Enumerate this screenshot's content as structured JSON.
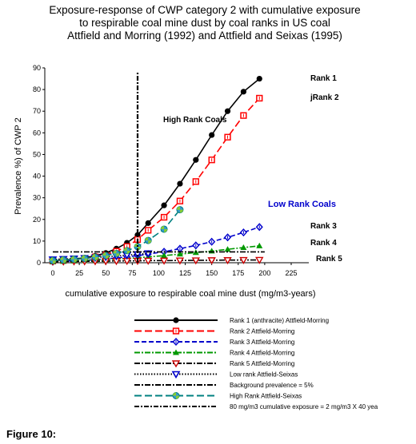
{
  "figure_caption": "Figure 10:",
  "chart_data": {
    "type": "line",
    "title_lines": [
      "Exposure-response of CWP category 2 with cumulative exposure",
      "to respirable coal mine dust by coal ranks in US coal",
      "Attfield and Morring (1992) and Attfield and Seixas (1995)"
    ],
    "xlabel": "cumulative exposure to respirable coal mine dust (mg/m3-years)",
    "ylabel": "Prevalence %) of CWP 2",
    "xlim": [
      0,
      225
    ],
    "ylim": [
      0,
      90
    ],
    "xticks": [
      "0",
      "25",
      "50",
      "75",
      "100",
      "125",
      "150",
      "175",
      "200",
      "225"
    ],
    "yticks": [
      "0",
      "10",
      "20",
      "30",
      "40",
      "50",
      "60",
      "70",
      "80",
      "90"
    ],
    "annotations": {
      "high_rank": "High Rank Coals",
      "low_rank": "Low Rank Coals",
      "rank1": "Rank 1",
      "rank2": "jRank 2",
      "rank3": "Rank 3",
      "rank4": "Rank 4",
      "rank5": "Rank 5"
    },
    "series": [
      {
        "name": "Rank 1 (anthracite) Attfield-Morring",
        "color": "#000000",
        "dash": "solid",
        "marker": "circle",
        "x": [
          0,
          10,
          20,
          30,
          40,
          50,
          60,
          70,
          80,
          90,
          105,
          120,
          135,
          150,
          165,
          180,
          195
        ],
        "y": [
          1,
          1.3,
          1.7,
          2.3,
          3.2,
          4.5,
          6.5,
          9.2,
          12.8,
          18.3,
          26.5,
          36.5,
          47.5,
          59,
          70,
          79,
          85
        ]
      },
      {
        "name": "Rank 2 Attfield-Morring",
        "color": "#ff0000",
        "dash": "long",
        "marker": "square",
        "x": [
          0,
          10,
          20,
          30,
          40,
          50,
          60,
          70,
          80,
          90,
          105,
          120,
          135,
          150,
          165,
          180,
          195
        ],
        "y": [
          0.8,
          1.1,
          1.5,
          2,
          2.7,
          3.7,
          5.3,
          7.5,
          10.7,
          15,
          21,
          28.5,
          37.5,
          47.5,
          58,
          68,
          76
        ]
      },
      {
        "name": "Rank 3 Attfield-Morring",
        "color": "#0000cc",
        "dash": "dash",
        "marker": "diamond",
        "x": [
          0,
          10,
          20,
          30,
          40,
          50,
          60,
          70,
          80,
          90,
          105,
          120,
          135,
          150,
          165,
          180,
          195
        ],
        "y": [
          0.5,
          0.7,
          0.9,
          1.1,
          1.4,
          1.8,
          2.2,
          2.7,
          3.3,
          4,
          5.1,
          6.5,
          8,
          9.7,
          11.7,
          14,
          16.5
        ]
      },
      {
        "name": "Rank 4 Attfield-Morring",
        "color": "#009900",
        "dash": "dashdot",
        "marker": "triangle",
        "x": [
          0,
          10,
          20,
          30,
          40,
          50,
          60,
          70,
          80,
          90,
          105,
          120,
          135,
          150,
          165,
          180,
          195
        ],
        "y": [
          0.5,
          0.6,
          0.8,
          1,
          1.2,
          1.4,
          1.7,
          2,
          2.3,
          2.7,
          3.3,
          4,
          4.7,
          5.4,
          6.2,
          7,
          7.8
        ]
      },
      {
        "name": "Rank 5 Attfield-Morring",
        "color": "#000000",
        "dash": "dashdot",
        "marker": "invtri-red",
        "x": [
          0,
          10,
          20,
          30,
          40,
          50,
          60,
          70,
          80,
          90,
          105,
          120,
          135,
          150,
          165,
          180,
          195
        ],
        "y": [
          0.5,
          0.55,
          0.6,
          0.65,
          0.7,
          0.75,
          0.8,
          0.85,
          0.9,
          0.95,
          1,
          1.05,
          1.1,
          1.15,
          1.2,
          1.25,
          1.3
        ]
      },
      {
        "name": "Low rank  Attfield-Seixas",
        "color": "#000000",
        "dash": "dotted",
        "marker": "invtri-blue",
        "x": [
          0,
          10,
          20,
          30,
          40,
          50,
          60,
          70,
          80,
          90
        ],
        "y": [
          1.5,
          1.7,
          1.9,
          2.1,
          2.4,
          2.7,
          3.1,
          3.5,
          3.9,
          4.3
        ]
      },
      {
        "name": "Background prevalence = 5%",
        "color": "#000000",
        "dash": "dashdot",
        "marker": "none",
        "x": [
          0,
          200
        ],
        "y": [
          5,
          5
        ]
      },
      {
        "name": "High Rank  Attfield-Seixas",
        "color": "#008080",
        "dash": "long",
        "marker": "tealcircle",
        "x": [
          0,
          10,
          20,
          30,
          40,
          50,
          60,
          70,
          80,
          90,
          105,
          120
        ],
        "y": [
          1,
          1.3,
          1.6,
          2,
          2.6,
          3.3,
          4.3,
          5.6,
          7.4,
          10.3,
          15.5,
          24.5
        ]
      },
      {
        "name": "80 mg/m3 cumulative exposure = 2 mg/m3 X 40 yea",
        "color": "#000000",
        "dash": "vertical",
        "marker": "none",
        "x": [
          80,
          80
        ],
        "y": [
          0,
          88
        ]
      }
    ]
  }
}
